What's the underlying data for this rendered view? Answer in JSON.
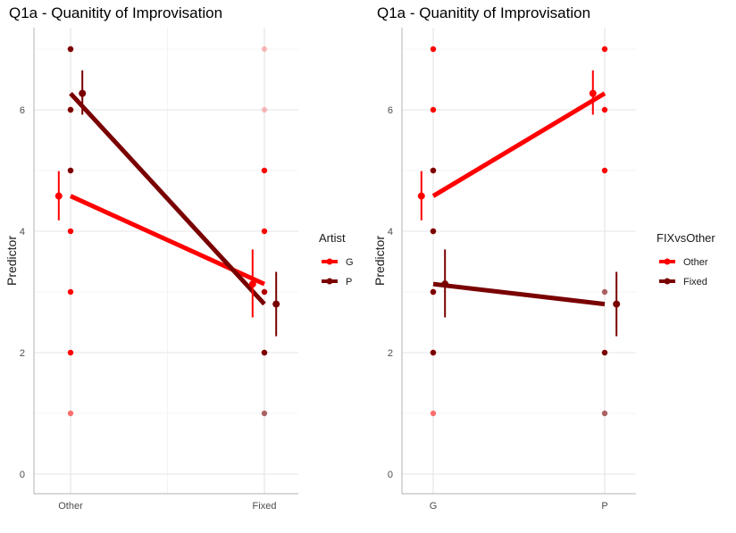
{
  "chart_data": [
    {
      "type": "line",
      "title": "Q1a - Quanitity of Improvisation",
      "xlabel": "",
      "ylabel": "Predictor",
      "categories": [
        "Other",
        "Fixed"
      ],
      "ylim": [
        -0.3,
        7.35
      ],
      "yticks": [
        "0",
        "2",
        "4",
        "6"
      ],
      "grid": true,
      "legend": {
        "title": "Artist",
        "position": "right",
        "entries": [
          "G",
          "P"
        ]
      },
      "series": [
        {
          "name": "G",
          "color": "#ff0000",
          "values": [
            4.58,
            3.13
          ],
          "error_low": [
            4.18,
            2.58
          ],
          "error_high": [
            4.99,
            3.7
          ],
          "raw_points": [
            {
              "x": "Other",
              "y": 7,
              "opacity": 1.0
            },
            {
              "x": "Other",
              "y": 6,
              "opacity": 1.0
            },
            {
              "x": "Other",
              "y": 5,
              "opacity": 1.0
            },
            {
              "x": "Other",
              "y": 4,
              "opacity": 1.0
            },
            {
              "x": "Other",
              "y": 3,
              "opacity": 1.0
            },
            {
              "x": "Other",
              "y": 2,
              "opacity": 1.0
            },
            {
              "x": "Other",
              "y": 1,
              "opacity": 0.55
            },
            {
              "x": "Fixed",
              "y": 7,
              "opacity": 0.25
            },
            {
              "x": "Fixed",
              "y": 6,
              "opacity": 0.25
            },
            {
              "x": "Fixed",
              "y": 5,
              "opacity": 1.0
            },
            {
              "x": "Fixed",
              "y": 4,
              "opacity": 1.0
            },
            {
              "x": "Fixed",
              "y": 3,
              "opacity": 1.0
            },
            {
              "x": "Fixed",
              "y": 2,
              "opacity": 1.0
            }
          ]
        },
        {
          "name": "P",
          "color": "#7a0000",
          "values": [
            6.27,
            2.8
          ],
          "error_low": [
            5.92,
            2.27
          ],
          "error_high": [
            6.65,
            3.33
          ],
          "raw_points": [
            {
              "x": "Other",
              "y": 7,
              "opacity": 1.0
            },
            {
              "x": "Other",
              "y": 6,
              "opacity": 1.0
            },
            {
              "x": "Other",
              "y": 5,
              "opacity": 1.0
            },
            {
              "x": "Fixed",
              "y": 3,
              "opacity": 0.6
            },
            {
              "x": "Fixed",
              "y": 2,
              "opacity": 1.0
            },
            {
              "x": "Fixed",
              "y": 1,
              "opacity": 0.6
            }
          ]
        }
      ]
    },
    {
      "type": "line",
      "title": "Q1a - Quanitity of Improvisation",
      "xlabel": "",
      "ylabel": "Predictor",
      "categories": [
        "G",
        "P"
      ],
      "ylim": [
        -0.3,
        7.35
      ],
      "yticks": [
        "0",
        "2",
        "4",
        "6"
      ],
      "grid": true,
      "legend": {
        "title": "FIXvsOther",
        "position": "right",
        "entries": [
          "Other",
          "Fixed"
        ]
      },
      "series": [
        {
          "name": "Other",
          "color": "#ff0000",
          "values": [
            4.58,
            6.27
          ],
          "error_low": [
            4.18,
            5.92
          ],
          "error_high": [
            4.99,
            6.65
          ],
          "raw_points": [
            {
              "x": "G",
              "y": 7,
              "opacity": 1.0
            },
            {
              "x": "G",
              "y": 6,
              "opacity": 1.0
            },
            {
              "x": "G",
              "y": 5,
              "opacity": 1.0
            },
            {
              "x": "G",
              "y": 4,
              "opacity": 1.0
            },
            {
              "x": "G",
              "y": 3,
              "opacity": 1.0
            },
            {
              "x": "G",
              "y": 2,
              "opacity": 1.0
            },
            {
              "x": "G",
              "y": 1,
              "opacity": 0.55
            },
            {
              "x": "P",
              "y": 7,
              "opacity": 1.0
            },
            {
              "x": "P",
              "y": 6,
              "opacity": 1.0
            },
            {
              "x": "P",
              "y": 5,
              "opacity": 1.0
            }
          ]
        },
        {
          "name": "Fixed",
          "color": "#7a0000",
          "values": [
            3.13,
            2.8
          ],
          "error_low": [
            2.58,
            2.27
          ],
          "error_high": [
            3.7,
            3.33
          ],
          "raw_points": [
            {
              "x": "G",
              "y": 5,
              "opacity": 1.0
            },
            {
              "x": "G",
              "y": 4,
              "opacity": 1.0
            },
            {
              "x": "G",
              "y": 3,
              "opacity": 1.0
            },
            {
              "x": "G",
              "y": 2,
              "opacity": 1.0
            },
            {
              "x": "P",
              "y": 3,
              "opacity": 0.6
            },
            {
              "x": "P",
              "y": 2,
              "opacity": 1.0
            },
            {
              "x": "P",
              "y": 1,
              "opacity": 0.6
            }
          ]
        }
      ]
    }
  ]
}
